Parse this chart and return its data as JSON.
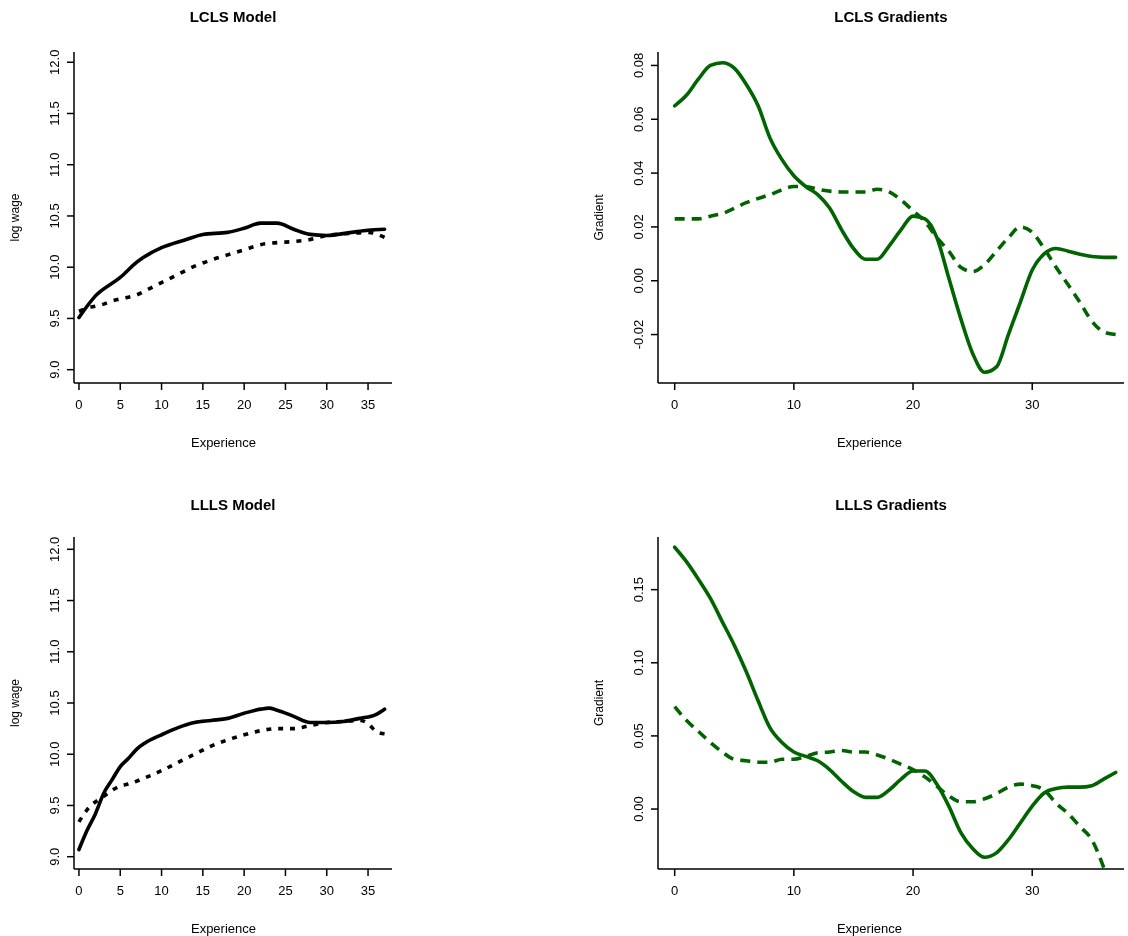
{
  "chart_data": [
    {
      "type": "line",
      "title": "LCLS Model",
      "xlabel": "Experience",
      "ylabel": "log wage",
      "xlim": [
        -0.6,
        37.9
      ],
      "ylim": [
        8.87,
        12.1
      ],
      "xticks": [
        0,
        5,
        10,
        15,
        20,
        25,
        30,
        35
      ],
      "yticks": [
        {
          "value": 9,
          "label": "9.0"
        },
        9.5,
        {
          "value": 10,
          "label": "10.0"
        },
        10.5,
        {
          "value": 11,
          "label": "11.0"
        },
        11.5,
        {
          "value": 12,
          "label": "12.0"
        }
      ],
      "series": [
        {
          "color": "#000000",
          "line_style": "solid",
          "x": [
            0,
            2,
            5,
            7,
            10,
            13,
            15,
            18,
            20,
            22,
            24,
            26,
            28,
            30,
            33,
            35,
            37
          ],
          "values": [
            9.51,
            9.72,
            9.9,
            10.05,
            10.19,
            10.27,
            10.32,
            10.34,
            10.38,
            10.43,
            10.43,
            10.37,
            10.32,
            10.31,
            10.34,
            10.36,
            10.37
          ]
        },
        {
          "color": "#000000",
          "line_style": "dotted",
          "x": [
            0,
            1,
            3,
            4,
            5,
            7,
            9,
            10,
            12,
            14,
            16,
            18,
            20,
            22,
            24,
            26,
            28,
            30,
            33,
            35,
            37
          ],
          "values": [
            9.57,
            9.6,
            9.64,
            9.67,
            9.69,
            9.73,
            9.81,
            9.85,
            9.93,
            10.01,
            10.07,
            10.12,
            10.17,
            10.22,
            10.24,
            10.25,
            10.27,
            10.31,
            10.33,
            10.34,
            10.29
          ]
        }
      ]
    },
    {
      "type": "line",
      "title": "LCLS Gradients",
      "xlabel": "Experience",
      "ylabel": "Gradient",
      "xlim": [
        -1.4,
        37.7
      ],
      "ylim": [
        -0.038,
        0.085
      ],
      "xticks": [
        0,
        10,
        20,
        30
      ],
      "yticks": [
        {
          "value": -0.02,
          "label": "-0.02"
        },
        {
          "value": 0,
          "label": "0.00"
        },
        {
          "value": 0.02,
          "label": "0.02"
        },
        {
          "value": 0.04,
          "label": "0.04"
        },
        {
          "value": 0.06,
          "label": "0.06"
        },
        {
          "value": 0.08,
          "label": "0.08"
        }
      ],
      "series": [
        {
          "color": "#006400",
          "line_style": "solid",
          "x": [
            0,
            1,
            2,
            3,
            4,
            5,
            6,
            7,
            8,
            9,
            10,
            11,
            12,
            13,
            14,
            15,
            16,
            17,
            18,
            19,
            20,
            21,
            22,
            23,
            24,
            25,
            26,
            27,
            28,
            29,
            30,
            31,
            32,
            33,
            34,
            35,
            36,
            37
          ],
          "values": [
            0.065,
            0.069,
            0.075,
            0.08,
            0.081,
            0.079,
            0.073,
            0.065,
            0.053,
            0.045,
            0.039,
            0.035,
            0.032,
            0.027,
            0.019,
            0.012,
            0.008,
            0.008,
            0.013,
            0.019,
            0.024,
            0.023,
            0.016,
            0.001,
            -0.014,
            -0.027,
            -0.034,
            -0.032,
            -0.02,
            -0.008,
            0.004,
            0.01,
            0.012,
            0.011,
            0.0098,
            0.009,
            0.0087,
            0.0087
          ]
        },
        {
          "color": "#006400",
          "line_style": "dashed",
          "x": [
            0,
            2,
            3,
            4,
            6,
            8,
            10,
            11,
            12,
            14,
            16,
            17,
            18,
            19,
            20,
            21,
            22,
            23,
            24,
            25,
            26,
            27,
            28,
            29,
            30,
            31,
            32,
            33,
            34,
            35,
            36,
            37
          ],
          "values": [
            0.023,
            0.023,
            0.024,
            0.025,
            0.029,
            0.032,
            0.035,
            0.035,
            0.034,
            0.033,
            0.033,
            0.034,
            0.033,
            0.03,
            0.026,
            0.022,
            0.016,
            0.011,
            0.005,
            0.0034,
            0.006,
            0.011,
            0.016,
            0.02,
            0.018,
            0.012,
            0.005,
            -0.0014,
            -0.008,
            -0.015,
            -0.019,
            -0.02
          ]
        }
      ]
    },
    {
      "type": "line",
      "title": "LLLS Model",
      "xlabel": "Experience",
      "ylabel": "log wage",
      "xlim": [
        -0.6,
        37.9
      ],
      "ylim": [
        8.88,
        12.12
      ],
      "xticks": [
        0,
        5,
        10,
        15,
        20,
        25,
        30,
        35
      ],
      "yticks": [
        {
          "value": 9,
          "label": "9.0"
        },
        9.5,
        {
          "value": 10,
          "label": "10.0"
        },
        10.5,
        {
          "value": 11,
          "label": "11.0"
        },
        11.5,
        {
          "value": 12,
          "label": "12.0"
        }
      ],
      "series": [
        {
          "color": "#000000",
          "line_style": "solid",
          "x": [
            0,
            1,
            2,
            3,
            4,
            5,
            6,
            7,
            8,
            10,
            12,
            14,
            16,
            18,
            20,
            22,
            23,
            24,
            26,
            28,
            30,
            32,
            34,
            36,
            37
          ],
          "values": [
            9.07,
            9.26,
            9.42,
            9.62,
            9.75,
            9.88,
            9.96,
            10.05,
            10.11,
            10.19,
            10.26,
            10.31,
            10.33,
            10.35,
            10.4,
            10.44,
            10.45,
            10.43,
            10.37,
            10.31,
            10.31,
            10.32,
            10.35,
            10.39,
            10.44
          ]
        },
        {
          "color": "#000000",
          "line_style": "dotted",
          "x": [
            0,
            1,
            3,
            5,
            6,
            8,
            10,
            12,
            14,
            16,
            18,
            20,
            22,
            24,
            26,
            28,
            30,
            32,
            34,
            35,
            36,
            37
          ],
          "values": [
            9.34,
            9.46,
            9.59,
            9.69,
            9.71,
            9.77,
            9.84,
            9.92,
            10.0,
            10.08,
            10.14,
            10.19,
            10.23,
            10.25,
            10.25,
            10.28,
            10.31,
            10.32,
            10.33,
            10.3,
            10.22,
            10.2
          ]
        }
      ]
    },
    {
      "type": "line",
      "title": "LLLS Gradients",
      "xlabel": "Experience",
      "ylabel": "Gradient",
      "xlim": [
        -1.4,
        37.7
      ],
      "ylim": [
        -0.041,
        0.186
      ],
      "xticks": [
        0,
        10,
        20,
        30
      ],
      "yticks": [
        {
          "value": 0,
          "label": "0.00"
        },
        {
          "value": 0.05,
          "label": "0.05"
        },
        {
          "value": 0.1,
          "label": "0.10"
        },
        {
          "value": 0.15,
          "label": "0.15"
        }
      ],
      "series": [
        {
          "color": "#006400",
          "line_style": "solid",
          "x": [
            0,
            1,
            2,
            3,
            4,
            5,
            6,
            7,
            8,
            9,
            10,
            11,
            12,
            13,
            14,
            15,
            16,
            17,
            18,
            19,
            20,
            21,
            22,
            23,
            24,
            25,
            26,
            27,
            28,
            29,
            30,
            31,
            32,
            33,
            34,
            35,
            36,
            37
          ],
          "values": [
            0.179,
            0.169,
            0.157,
            0.144,
            0.128,
            0.112,
            0.094,
            0.074,
            0.0555,
            0.0455,
            0.039,
            0.036,
            0.033,
            0.027,
            0.019,
            0.012,
            0.008,
            0.008,
            0.013,
            0.0205,
            0.026,
            0.026,
            0.017,
            0.002,
            -0.016,
            -0.027,
            -0.033,
            -0.03,
            -0.021,
            -0.0095,
            0.002,
            0.011,
            0.014,
            0.015,
            0.015,
            0.016,
            0.0205,
            0.025
          ]
        },
        {
          "color": "#006400",
          "line_style": "dashed",
          "x": [
            0,
            1,
            2,
            3,
            4,
            5,
            6,
            7,
            8,
            9,
            10,
            11,
            12,
            13,
            14,
            15,
            16,
            17,
            18,
            19,
            20,
            21,
            22,
            23,
            24,
            25,
            26,
            27,
            28,
            29,
            30,
            31,
            32,
            33,
            34,
            35,
            36
          ],
          "values": [
            0.07,
            0.0605,
            0.053,
            0.0455,
            0.039,
            0.034,
            0.033,
            0.032,
            0.032,
            0.034,
            0.034,
            0.036,
            0.0385,
            0.039,
            0.04,
            0.039,
            0.039,
            0.037,
            0.034,
            0.0305,
            0.027,
            0.022,
            0.0155,
            0.009,
            0.005,
            0.005,
            0.007,
            0.0105,
            0.015,
            0.017,
            0.016,
            0.013,
            0.004,
            -0.003,
            -0.012,
            -0.021,
            -0.04
          ]
        }
      ]
    }
  ]
}
